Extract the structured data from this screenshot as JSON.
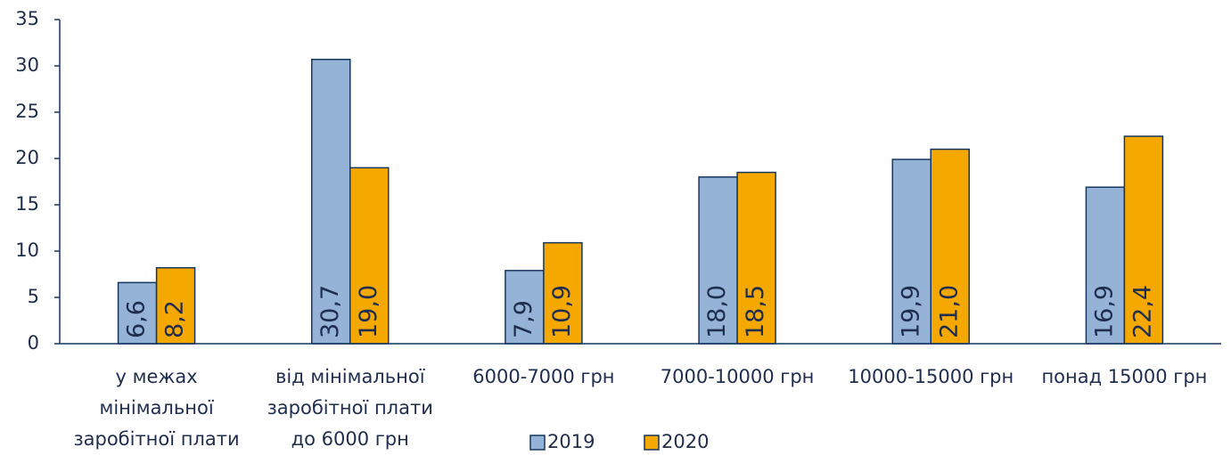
{
  "chart_data": {
    "type": "bar",
    "categories": [
      [
        "у межах",
        "мінімальної",
        "заробітної плати"
      ],
      [
        "від мінімальної",
        "заробітної плати",
        "до 6000 грн"
      ],
      [
        "6000-7000 грн"
      ],
      [
        "7000-10000 грн"
      ],
      [
        "10000-15000 грн"
      ],
      [
        "понад 15000 грн"
      ]
    ],
    "series": [
      {
        "name": "2019",
        "color": "#95b3d7",
        "values": [
          6.6,
          30.7,
          7.9,
          18.0,
          19.9,
          16.9
        ],
        "value_labels": [
          "6,6",
          "30,7",
          "7,9",
          "18,0",
          "19,9",
          "16,9"
        ]
      },
      {
        "name": "2020",
        "color": "#f5a800",
        "values": [
          8.2,
          19.0,
          10.9,
          18.5,
          21.0,
          22.4
        ],
        "value_labels": [
          "8,2",
          "19,0",
          "10,9",
          "18,5",
          "21,0",
          "22,4"
        ]
      }
    ],
    "ylim": [
      0,
      35
    ],
    "yticks": [
      0,
      5,
      10,
      15,
      20,
      25,
      30,
      35
    ],
    "grid": false,
    "legend": "bottom"
  }
}
